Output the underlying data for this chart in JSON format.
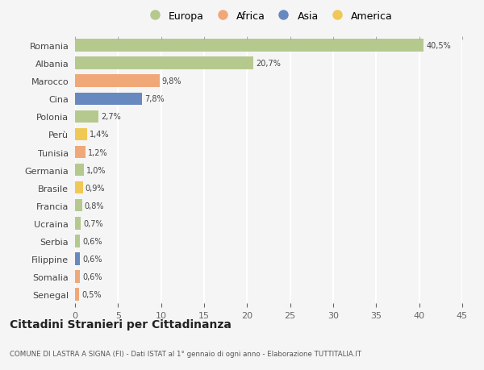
{
  "countries": [
    "Romania",
    "Albania",
    "Marocco",
    "Cina",
    "Polonia",
    "Perù",
    "Tunisia",
    "Germania",
    "Brasile",
    "Francia",
    "Ucraina",
    "Serbia",
    "Filippine",
    "Somalia",
    "Senegal"
  ],
  "values": [
    40.5,
    20.7,
    9.8,
    7.8,
    2.7,
    1.4,
    1.2,
    1.0,
    0.9,
    0.8,
    0.7,
    0.6,
    0.6,
    0.6,
    0.5
  ],
  "labels": [
    "40,5%",
    "20,7%",
    "9,8%",
    "7,8%",
    "2,7%",
    "1,4%",
    "1,2%",
    "1,0%",
    "0,9%",
    "0,8%",
    "0,7%",
    "0,6%",
    "0,6%",
    "0,6%",
    "0,5%"
  ],
  "continents": [
    "Europa",
    "Europa",
    "Africa",
    "Asia",
    "Europa",
    "America",
    "Africa",
    "Europa",
    "America",
    "Europa",
    "Europa",
    "Europa",
    "Asia",
    "Africa",
    "Africa"
  ],
  "colors": {
    "Europa": "#b5c98e",
    "Africa": "#f0a878",
    "Asia": "#6888c0",
    "America": "#f0c855"
  },
  "legend_order": [
    "Europa",
    "Africa",
    "Asia",
    "America"
  ],
  "title": "Cittadini Stranieri per Cittadinanza",
  "subtitle": "COMUNE DI LASTRA A SIGNA (FI) - Dati ISTAT al 1° gennaio di ogni anno - Elaborazione TUTTITALIA.IT",
  "xlim": [
    0,
    45
  ],
  "xticks": [
    0,
    5,
    10,
    15,
    20,
    25,
    30,
    35,
    40,
    45
  ],
  "background_color": "#f5f5f5",
  "grid_color": "#ffffff",
  "bar_height": 0.7
}
